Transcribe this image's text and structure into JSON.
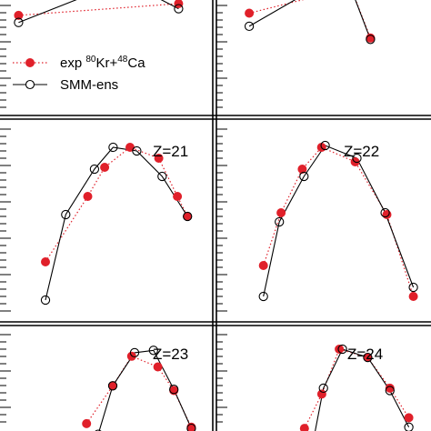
{
  "legend": {
    "exp_prefix": "exp ",
    "exp_sup1": "80",
    "exp_mid": "Kr+",
    "exp_sup2": "48",
    "exp_suffix": "Ca",
    "model_label": "SMM-ens"
  },
  "colors": {
    "exp": "#e0202a",
    "model": "#000000",
    "frame": "#000000"
  },
  "chart_data": [
    {
      "type": "line",
      "panel": "top-left",
      "label": "",
      "ylim": [
        0,
        1
      ],
      "series": [
        {
          "name": "exp 80Kr+48Ca",
          "points": [
            [
              0.02,
              0.52
            ],
            [
              0.82,
              0.75
            ]
          ]
        },
        {
          "name": "SMM-ens",
          "points": [
            [
              0.02,
              0.38
            ],
            [
              0.55,
              1.2
            ],
            [
              0.82,
              0.65
            ]
          ]
        }
      ]
    },
    {
      "type": "line",
      "panel": "top-right",
      "label": "",
      "ylim": [
        0,
        1
      ],
      "series": [
        {
          "name": "exp 80Kr+48Ca",
          "points": [
            [
              0.16,
              0.66
            ],
            [
              0.63,
              1.05
            ],
            [
              0.72,
              0.28
            ]
          ]
        },
        {
          "name": "SMM-ens",
          "points": [
            [
              0.16,
              0.46
            ],
            [
              0.6,
              1.3
            ],
            [
              0.72,
              0.26
            ]
          ]
        }
      ]
    },
    {
      "type": "line",
      "panel": "mid-left",
      "label": "Z=21",
      "ylim": [
        0,
        1
      ],
      "series": [
        {
          "name": "exp 80Kr+48Ca",
          "points": [
            [
              0.0,
              0.26
            ],
            [
              0.25,
              0.62
            ],
            [
              0.35,
              0.78
            ],
            [
              0.5,
              0.89
            ],
            [
              0.67,
              0.83
            ],
            [
              0.78,
              0.62
            ],
            [
              0.84,
              0.51
            ]
          ]
        },
        {
          "name": "SMM-ens",
          "points": [
            [
              0.0,
              0.05
            ],
            [
              0.12,
              0.52
            ],
            [
              0.29,
              0.77
            ],
            [
              0.4,
              0.89
            ],
            [
              0.54,
              0.87
            ],
            [
              0.69,
              0.73
            ],
            [
              0.84,
              0.51
            ]
          ]
        }
      ]
    },
    {
      "type": "line",
      "panel": "mid-right",
      "label": "Z=22",
      "ylim": [
        0,
        1
      ],
      "series": [
        {
          "name": "exp 80Kr+48Ca",
          "points": [
            [
              0.05,
              0.24
            ],
            [
              0.15,
              0.53
            ],
            [
              0.27,
              0.77
            ],
            [
              0.38,
              0.89
            ],
            [
              0.57,
              0.81
            ],
            [
              0.75,
              0.52
            ],
            [
              0.9,
              0.07
            ]
          ]
        },
        {
          "name": "SMM-ens",
          "points": [
            [
              0.05,
              0.07
            ],
            [
              0.14,
              0.48
            ],
            [
              0.28,
              0.73
            ],
            [
              0.4,
              0.9
            ],
            [
              0.58,
              0.83
            ],
            [
              0.74,
              0.53
            ],
            [
              0.9,
              0.12
            ]
          ]
        }
      ]
    },
    {
      "type": "line",
      "panel": "bottom-left",
      "label": "Z=23",
      "ylim": [
        0,
        1
      ],
      "series": [
        {
          "name": "exp 80Kr+48Ca",
          "points": [
            [
              0.12,
              0.07
            ],
            [
              0.3,
              0.39
            ],
            [
              0.43,
              0.64
            ],
            [
              0.61,
              0.55
            ],
            [
              0.72,
              0.35
            ],
            [
              0.84,
              0.04
            ]
          ]
        },
        {
          "name": "SMM-ens",
          "points": [
            [
              0.2,
              -0.02
            ],
            [
              0.3,
              0.39
            ],
            [
              0.45,
              0.67
            ],
            [
              0.58,
              0.69
            ],
            [
              0.72,
              0.36
            ],
            [
              0.84,
              0.03
            ]
          ]
        }
      ]
    },
    {
      "type": "line",
      "panel": "bottom-right",
      "label": "Z=24",
      "ylim": [
        0,
        1
      ],
      "series": [
        {
          "name": "exp 80Kr+48Ca",
          "points": [
            [
              0.2,
              0.03
            ],
            [
              0.31,
              0.32
            ],
            [
              0.42,
              0.7
            ],
            [
              0.6,
              0.63
            ],
            [
              0.74,
              0.37
            ],
            [
              0.86,
              0.12
            ]
          ]
        },
        {
          "name": "SMM-ens",
          "points": [
            [
              0.26,
              -0.05
            ],
            [
              0.32,
              0.37
            ],
            [
              0.44,
              0.7
            ],
            [
              0.6,
              0.63
            ],
            [
              0.74,
              0.35
            ],
            [
              0.86,
              0.04
            ]
          ]
        }
      ]
    }
  ]
}
